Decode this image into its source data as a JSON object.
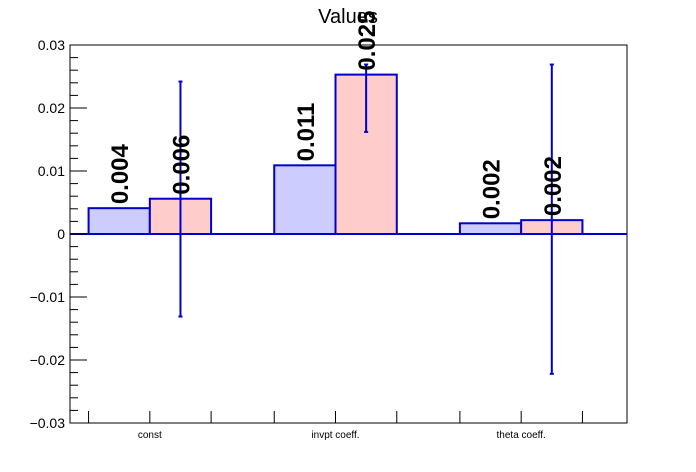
{
  "chart_data": {
    "type": "bar",
    "title": "Values",
    "xlabel": "",
    "ylabel": "",
    "categories": [
      "const",
      "invpt coeff.",
      "theta coeff."
    ],
    "ylim": [
      -0.03,
      0.03
    ],
    "yticks": [
      -0.03,
      -0.02,
      -0.01,
      0,
      0.01,
      0.02,
      0.03
    ],
    "ytick_labels": [
      "−0.03",
      "−0.02",
      "−0.01",
      "0",
      "0.01",
      "0.02",
      "0.03"
    ],
    "grid": false,
    "series": [
      {
        "values": [
          0.0041,
          0.0109,
          0.0017
        ],
        "labels": [
          "0.004",
          "0.011",
          "0.002"
        ],
        "color": "#ccccff",
        "edge_color": "#0000cc"
      },
      {
        "values": [
          0.0056,
          0.0253,
          0.0022
        ],
        "labels": [
          "0.006",
          "0.025",
          "0.002"
        ],
        "color": "#ffcccc",
        "edge_color": "#0000cc",
        "error_low": [
          -0.0131,
          0.0162,
          -0.0222
        ],
        "error_high": [
          0.0242,
          0.0269,
          0.0269
        ]
      }
    ]
  }
}
